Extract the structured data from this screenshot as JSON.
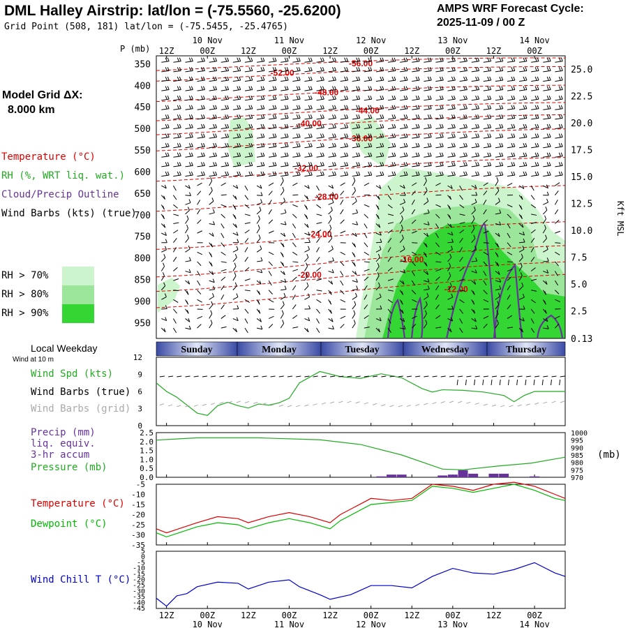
{
  "header": {
    "title": "DML Halley Airstrip:  lat/lon = (-75.5560, -25.6200)",
    "grid_point": "Grid Point (508, 181) lat/lon = (-75.5455, -25.4765)",
    "cycle_label": "AMPS WRF Forecast Cycle:",
    "cycle_value": "2025-11-09 / 00  Z"
  },
  "model": {
    "label": "Model Grid ΔX:",
    "value": "8.000 km"
  },
  "colors": {
    "temperature": "#dd0000",
    "rh": "#22aa22",
    "cloud": "#663399",
    "wind": "#000000",
    "wind_grid": "#aaaaaa",
    "dewpoint": "#00bb00",
    "windchill": "#0000cc",
    "rh70": "#cdf5cd",
    "rh80": "#9ce69c",
    "rh90": "#33d633"
  },
  "legend": {
    "temperature": "Temperature (°C)",
    "rh": "RH (%, WRT liq. wat.)",
    "cloud": "Cloud/Precip Outline",
    "wind": "Wind Barbs (kts) (true)",
    "rh70": "RH > 70%",
    "rh80": "RH > 80%",
    "rh90": "RH > 90%"
  },
  "weekday": {
    "label": "Local Weekday",
    "wind_at": "Wind at 10 m",
    "days": [
      "Sunday",
      "Monday",
      "Tuesday",
      "Wednesday",
      "Thursday"
    ]
  },
  "panel_labels": {
    "wind_spd": "Wind Spd (kts)",
    "wind_barbs_true": "Wind Barbs (true)",
    "wind_barbs_grid": "Wind Barbs (grid)",
    "precip1": "Precip (mm)",
    "precip2": "liq. equiv.",
    "precip3": "3-hr accum",
    "pressure": "Pressure (mb)",
    "pressure_unit": "(mb)",
    "temperature": "Temperature (°C)",
    "dewpoint": "Dewpoint (°C)",
    "windchill": "Wind Chill T (°C)"
  },
  "chart_data": [
    {
      "type": "contour",
      "name": "cross-section",
      "ylabel": "P (mb)",
      "ylabel_right": "Kft MSL",
      "x_hours": [
        0,
        120
      ],
      "time_ticks": [
        {
          "hour": 3,
          "label": "12Z",
          "date": ""
        },
        {
          "hour": 15,
          "label": "00Z",
          "date": "10 Nov"
        },
        {
          "hour": 27,
          "label": "12Z",
          "date": ""
        },
        {
          "hour": 39,
          "label": "00Z",
          "date": "11 Nov"
        },
        {
          "hour": 51,
          "label": "12Z",
          "date": ""
        },
        {
          "hour": 63,
          "label": "00Z",
          "date": "12 Nov"
        },
        {
          "hour": 75,
          "label": "12Z",
          "date": ""
        },
        {
          "hour": 87,
          "label": "00Z",
          "date": "13 Nov"
        },
        {
          "hour": 99,
          "label": "12Z",
          "date": ""
        },
        {
          "hour": 111,
          "label": "00Z",
          "date": "14 Nov"
        }
      ],
      "pressure_ticks": [
        350,
        400,
        450,
        500,
        550,
        600,
        650,
        700,
        750,
        800,
        850,
        900,
        950
      ],
      "height_ticks": [
        "25.0",
        "22.5",
        "20.0",
        "17.5",
        "15.0",
        "12.5",
        "10.0",
        "7.5",
        "5.0",
        "2.5",
        "0.13"
      ],
      "isotherms": [
        {
          "label": "-56.00",
          "p": 348,
          "h": 60
        },
        {
          "label": "-52.00",
          "p": 370,
          "h": 37
        },
        {
          "label": "-48.00",
          "p": 415,
          "h": 50
        },
        {
          "label": "-44.00",
          "p": 457,
          "h": 62
        },
        {
          "label": "-40.00",
          "p": 487,
          "h": 45
        },
        {
          "label": "-36.00",
          "p": 522,
          "h": 60
        },
        {
          "label": "-32.00",
          "p": 590,
          "h": 44
        },
        {
          "label": "-28.00",
          "p": 657,
          "h": 50
        },
        {
          "label": "-24.00",
          "p": 743,
          "h": 48
        },
        {
          "label": "-20.00",
          "p": 838,
          "h": 45
        },
        {
          "label": "-16.00",
          "p": 802,
          "h": 75
        },
        {
          "label": "-12.00",
          "p": 871,
          "h": 88
        }
      ]
    },
    {
      "type": "line",
      "name": "wind-speed",
      "ylim": [
        0,
        12
      ],
      "yticks": [
        "0",
        "3",
        "6",
        "9",
        "12"
      ],
      "series": [
        {
          "name": "Wind Spd (kts)",
          "points": [
            [
              0,
              7.5
            ],
            [
              3,
              6
            ],
            [
              6,
              5
            ],
            [
              12,
              2.2
            ],
            [
              15,
              1.8
            ],
            [
              18,
              3.5
            ],
            [
              21,
              4.1
            ],
            [
              24,
              3.5
            ],
            [
              27,
              3.1
            ],
            [
              30,
              3.8
            ],
            [
              33,
              3.6
            ],
            [
              36,
              4.0
            ],
            [
              39,
              4.8
            ],
            [
              42,
              7.5
            ],
            [
              48,
              9.5
            ],
            [
              54,
              8.6
            ],
            [
              60,
              8.3
            ],
            [
              66,
              9.1
            ],
            [
              72,
              8.4
            ],
            [
              78,
              6.5
            ],
            [
              81,
              5.9
            ],
            [
              84,
              6.3
            ],
            [
              90,
              6.2
            ],
            [
              96,
              5.9
            ],
            [
              102,
              5.3
            ],
            [
              105,
              4.2
            ],
            [
              108,
              5.3
            ],
            [
              111,
              6.0
            ],
            [
              120,
              6.0
            ]
          ]
        }
      ]
    },
    {
      "type": "bar+line",
      "name": "precip-pressure",
      "ylim_left": [
        0,
        2.5
      ],
      "yticks_left": [
        "0.0",
        "0.5",
        "1.0",
        "1.5",
        "2.0",
        "2.5"
      ],
      "ylim_right": [
        970,
        1000
      ],
      "yticks_right": [
        "970",
        "975",
        "980",
        "985",
        "990",
        "995",
        "1000"
      ],
      "precip_bars": [
        [
          66,
          0.05
        ],
        [
          69,
          0.15
        ],
        [
          72,
          0.15
        ],
        [
          84,
          0.1
        ],
        [
          87,
          0.15
        ],
        [
          90,
          0.4
        ],
        [
          93,
          0.2
        ],
        [
          99,
          0.2
        ],
        [
          102,
          0.2
        ],
        [
          111,
          0.05
        ]
      ],
      "pressure": [
        [
          0,
          995
        ],
        [
          12,
          996.5
        ],
        [
          30,
          996.5
        ],
        [
          48,
          995.2
        ],
        [
          60,
          992
        ],
        [
          72,
          985
        ],
        [
          84,
          975.5
        ],
        [
          90,
          975
        ],
        [
          100,
          977.5
        ],
        [
          110,
          979.5
        ],
        [
          120,
          983.5
        ]
      ]
    },
    {
      "type": "line",
      "name": "temp-dewpoint",
      "ylim": [
        -35,
        -5
      ],
      "yticks": [
        "-5",
        "-10",
        "-15",
        "-20",
        "-25",
        "-30",
        "-35"
      ],
      "series": [
        {
          "name": "Temperature",
          "points": [
            [
              0,
              -27
            ],
            [
              3,
              -29
            ],
            [
              12,
              -24
            ],
            [
              18,
              -21
            ],
            [
              24,
              -22
            ],
            [
              27,
              -24
            ],
            [
              33,
              -21
            ],
            [
              39,
              -19
            ],
            [
              45,
              -21
            ],
            [
              51,
              -24
            ],
            [
              54,
              -20
            ],
            [
              63,
              -12
            ],
            [
              69,
              -13
            ],
            [
              75,
              -12
            ],
            [
              81,
              -5
            ],
            [
              87,
              -6
            ],
            [
              93,
              -8
            ],
            [
              99,
              -5
            ],
            [
              105,
              -4
            ],
            [
              111,
              -6
            ],
            [
              117,
              -10
            ],
            [
              120,
              -12
            ]
          ]
        },
        {
          "name": "Dewpoint",
          "points": [
            [
              0,
              -29
            ],
            [
              3,
              -31
            ],
            [
              12,
              -26
            ],
            [
              18,
              -24
            ],
            [
              24,
              -25
            ],
            [
              27,
              -27
            ],
            [
              33,
              -24
            ],
            [
              39,
              -22
            ],
            [
              45,
              -24
            ],
            [
              51,
              -27
            ],
            [
              54,
              -23
            ],
            [
              63,
              -15
            ],
            [
              69,
              -14
            ],
            [
              75,
              -13
            ],
            [
              81,
              -6
            ],
            [
              87,
              -7
            ],
            [
              93,
              -9
            ],
            [
              99,
              -7
            ],
            [
              105,
              -5
            ],
            [
              111,
              -8
            ],
            [
              117,
              -12
            ],
            [
              120,
              -13
            ]
          ]
        }
      ]
    },
    {
      "type": "line",
      "name": "wind-chill",
      "ylim": [
        -45,
        5
      ],
      "yticks": [
        "5",
        "0",
        "-5",
        "-10",
        "-15",
        "-20",
        "-25",
        "-30",
        "-35",
        "-40",
        "-45"
      ],
      "series": [
        {
          "name": "Wind Chill T",
          "points": [
            [
              0,
              -36
            ],
            [
              3,
              -43
            ],
            [
              6,
              -34
            ],
            [
              9,
              -32
            ],
            [
              12,
              -26
            ],
            [
              18,
              -22
            ],
            [
              24,
              -23
            ],
            [
              27,
              -28
            ],
            [
              30,
              -25
            ],
            [
              33,
              -22
            ],
            [
              39,
              -20
            ],
            [
              42,
              -26
            ],
            [
              48,
              -33
            ],
            [
              51,
              -37
            ],
            [
              57,
              -33
            ],
            [
              63,
              -25
            ],
            [
              69,
              -25
            ],
            [
              75,
              -27
            ],
            [
              81,
              -17
            ],
            [
              87,
              -10
            ],
            [
              93,
              -14
            ],
            [
              99,
              -15
            ],
            [
              105,
              -11
            ],
            [
              111,
              -5
            ],
            [
              117,
              -14
            ],
            [
              120,
              -17
            ]
          ]
        }
      ]
    }
  ]
}
